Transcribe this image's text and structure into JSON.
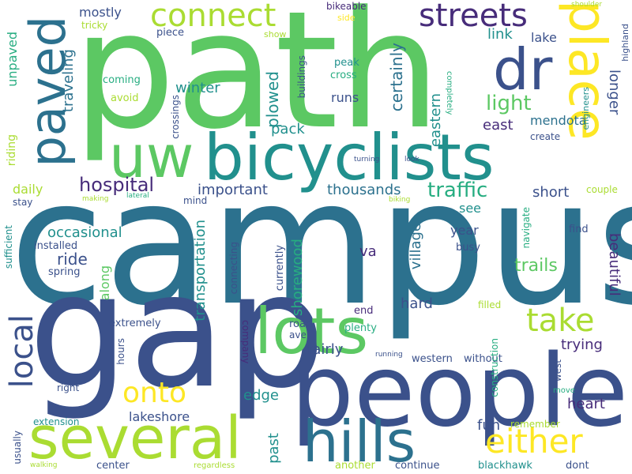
{
  "words": {
    "campus": "campus",
    "path": "path",
    "gap": "gap",
    "people": "people",
    "bicyclists": "bicyclists",
    "lots": "lots",
    "several": "several",
    "hills": "hills",
    "uw": "uw",
    "place": "place",
    "paved": "paved",
    "dr": "dr",
    "connect": "connect",
    "streets": "streets",
    "either": "either",
    "take": "take",
    "local": "local",
    "onto": "onto",
    "light": "light",
    "traffic": "traffic",
    "hospital": "hospital",
    "thousands": "thousands",
    "important": "important",
    "winter": "winter",
    "plowed": "plowed",
    "certainly": "certainly",
    "mostly": "mostly",
    "traveling": "traveling",
    "eastern": "eastern",
    "link": "link",
    "lake": "lake",
    "east": "east",
    "mendota": "mendota",
    "longer": "longer",
    "pack": "pack",
    "runs": "runs",
    "occasional": "occasional",
    "transportation": "transportation",
    "shorewood": "shorewood",
    "village": "village",
    "ride": "ride",
    "va": "va",
    "year": "year",
    "see": "see",
    "short": "short",
    "trails": "trails",
    "beautiful": "beautiful",
    "daily": "daily",
    "along": "along",
    "hard": "hard",
    "fairly": "fairly",
    "trying": "trying",
    "edge": "edge",
    "heart": "heart",
    "fun": "fun",
    "lakeshore": "lakeshore",
    "past": "past",
    "installed": "installed",
    "riding": "riding",
    "unpaved": "unpaved",
    "spring": "spring",
    "sufficient": "sufficient",
    "extremely": "extremely",
    "right": "right",
    "hours": "hours",
    "company": "company",
    "currently": "currently",
    "connecting": "connecting",
    "western": "western",
    "without": "without",
    "plenty": "plenty",
    "end": "end",
    "road": "road",
    "ave": "ave",
    "construction": "construction",
    "west": "west",
    "filled": "filled",
    "busy": "busy",
    "navigate": "navigate",
    "find": "find",
    "couple": "couple",
    "extension": "extension",
    "center": "center",
    "another": "another",
    "continue": "continue",
    "blackhawk": "blackhawk",
    "dont": "dont",
    "remember": "remember",
    "move": "move",
    "usually": "usually",
    "walking": "walking",
    "regardless": "regardless",
    "coming": "coming",
    "avoid": "avoid",
    "crossings": "crossings",
    "tricky": "tricky",
    "piece": "piece",
    "show": "show",
    "bikeable": "bikeable",
    "side": "side",
    "shoulder": "shoulder",
    "highland": "highland",
    "peak": "peak",
    "cross": "cross",
    "buildings": "buildings",
    "completely": "completely",
    "engineers": "engineers",
    "create": "create",
    "turning": "turning",
    "look": "look",
    "mind": "mind",
    "stay": "stay",
    "making": "making",
    "lateral": "lateral",
    "biking": "biking",
    "running": "running"
  },
  "palette": {
    "deep_purple": "#440154",
    "indigo": "#472c7a",
    "navy": "#3b518b",
    "steel_blue": "#2c718e",
    "teal": "#21908d",
    "sea_green": "#27ad81",
    "green": "#5cc863",
    "lime": "#aadc32",
    "yellow": "#fde725",
    "background": "#ffffff"
  }
}
